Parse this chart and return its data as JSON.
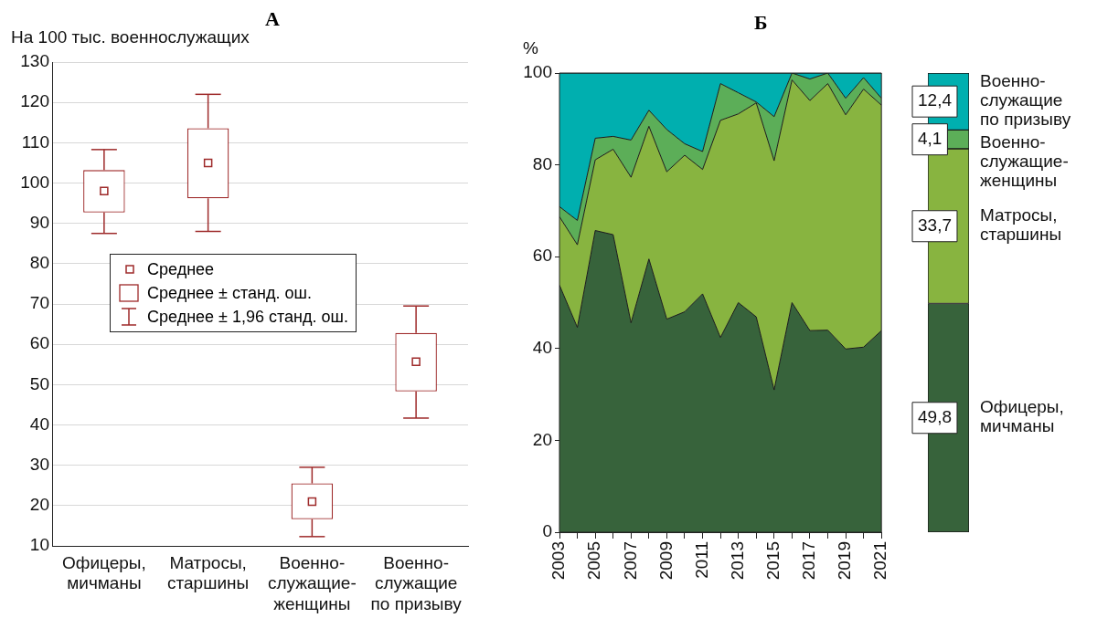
{
  "chart_data": [
    {
      "type": "box",
      "title": "А",
      "ylabel": "На 100 тыс. военнослужащих",
      "categories": [
        "Офицеры,\nмичманы",
        "Матросы,\nстаршины",
        "Военно-\nслужащие-\nженщины",
        "Военно-\nслужащие\nпо призыву"
      ],
      "boxes": [
        {
          "low": 87.5,
          "q1": 92.7,
          "median": 98,
          "q3": 103.2,
          "high": 108.3
        },
        {
          "low": 88,
          "q1": 96.2,
          "median": 105,
          "q3": 113.6,
          "high": 122
        },
        {
          "low": 12.3,
          "q1": 16.6,
          "median": 21,
          "q3": 25.5,
          "high": 29.5
        },
        {
          "low": 41.7,
          "q1": 48.3,
          "median": 55.7,
          "q3": 62.8,
          "high": 69.5
        }
      ],
      "color": "#9e2a2a",
      "ylim": [
        10,
        130
      ],
      "yticks": [
        10,
        20,
        30,
        40,
        50,
        60,
        70,
        80,
        90,
        100,
        110,
        120,
        130
      ],
      "grid": "y",
      "annotations": [
        "Среднее",
        "Среднее ± станд. ош.",
        "Среднее ± 1,96 станд. ош."
      ]
    },
    {
      "type": "area",
      "title": "Б",
      "ylabel": "%",
      "stacked": true,
      "x": [
        2003,
        2004,
        2005,
        2006,
        2007,
        2008,
        2009,
        2010,
        2011,
        2012,
        2013,
        2014,
        2015,
        2016,
        2017,
        2018,
        2019,
        2020,
        2021
      ],
      "series": [
        {
          "color": "#37633b",
          "values": [
            53.8,
            44.6,
            65.7,
            64.8,
            45.6,
            59.5,
            46.4,
            48.0,
            51.9,
            42.4,
            50.0,
            46.9,
            31.0,
            50.0,
            43.9,
            44.0,
            39.9,
            40.3,
            43.9
          ]
        },
        {
          "color": "#88b440",
          "values": [
            14.9,
            18.0,
            15.4,
            18.6,
            31.7,
            28.9,
            32.1,
            34.1,
            27.1,
            47.3,
            41.1,
            46.6,
            49.9,
            48.5,
            50.1,
            53.7,
            51.0,
            56.2,
            49.1
          ]
        },
        {
          "color": "#5cae58",
          "values": [
            2.2,
            5.3,
            4.7,
            2.8,
            8.1,
            3.5,
            9.2,
            2.5,
            3.9,
            8.0,
            4.6,
            0.2,
            9.6,
            1.5,
            4.7,
            2.3,
            3.6,
            2.5,
            1.5
          ]
        },
        {
          "color": "#00afaf",
          "values": [
            29.1,
            32.1,
            14.2,
            13.8,
            14.6,
            8.1,
            12.3,
            15.4,
            17.1,
            2.3,
            4.3,
            6.3,
            9.5,
            0,
            1.3,
            0,
            5.5,
            1.0,
            5.5
          ]
        }
      ],
      "xlim": [
        2003,
        2021
      ],
      "xticks": [
        2003,
        {
          "value": 2004,
          "label": null
        },
        2005,
        {
          "value": 2006,
          "label": null
        },
        2007,
        {
          "value": 2008,
          "label": null
        },
        2009,
        {
          "value": 2010,
          "label": null
        },
        2011,
        {
          "value": 2012,
          "label": null
        },
        2013,
        {
          "value": 2014,
          "label": null
        },
        2015,
        {
          "value": 2016,
          "label": null
        },
        2017,
        {
          "value": 2018,
          "label": null
        },
        2019,
        {
          "value": 2020,
          "label": null
        },
        2021
      ],
      "ylim": [
        0,
        100
      ],
      "yticks": [
        0,
        20,
        40,
        60,
        80,
        100
      ]
    },
    {
      "type": "bar",
      "stacked": true,
      "categories": [
        null
      ],
      "series": [
        {
          "name": "Офицеры,\nмичманы",
          "color": "#37633b",
          "values": [
            49.8
          ],
          "value_labels": [
            "49,8"
          ]
        },
        {
          "name": "Матросы,\nстаршины",
          "color": "#88b440",
          "values": [
            33.7
          ],
          "value_labels": [
            "33,7"
          ]
        },
        {
          "name": "Военно-\nслужащие-\nженщины",
          "color": "#5cae58",
          "values": [
            4.1
          ],
          "value_labels": [
            "4,1"
          ]
        },
        {
          "name": "Военно-\nслужащие\nпо призыву",
          "color": "#00afaf",
          "values": [
            12.4
          ],
          "value_labels": [
            "12,4"
          ]
        }
      ],
      "ylim": [
        0,
        100
      ]
    }
  ]
}
